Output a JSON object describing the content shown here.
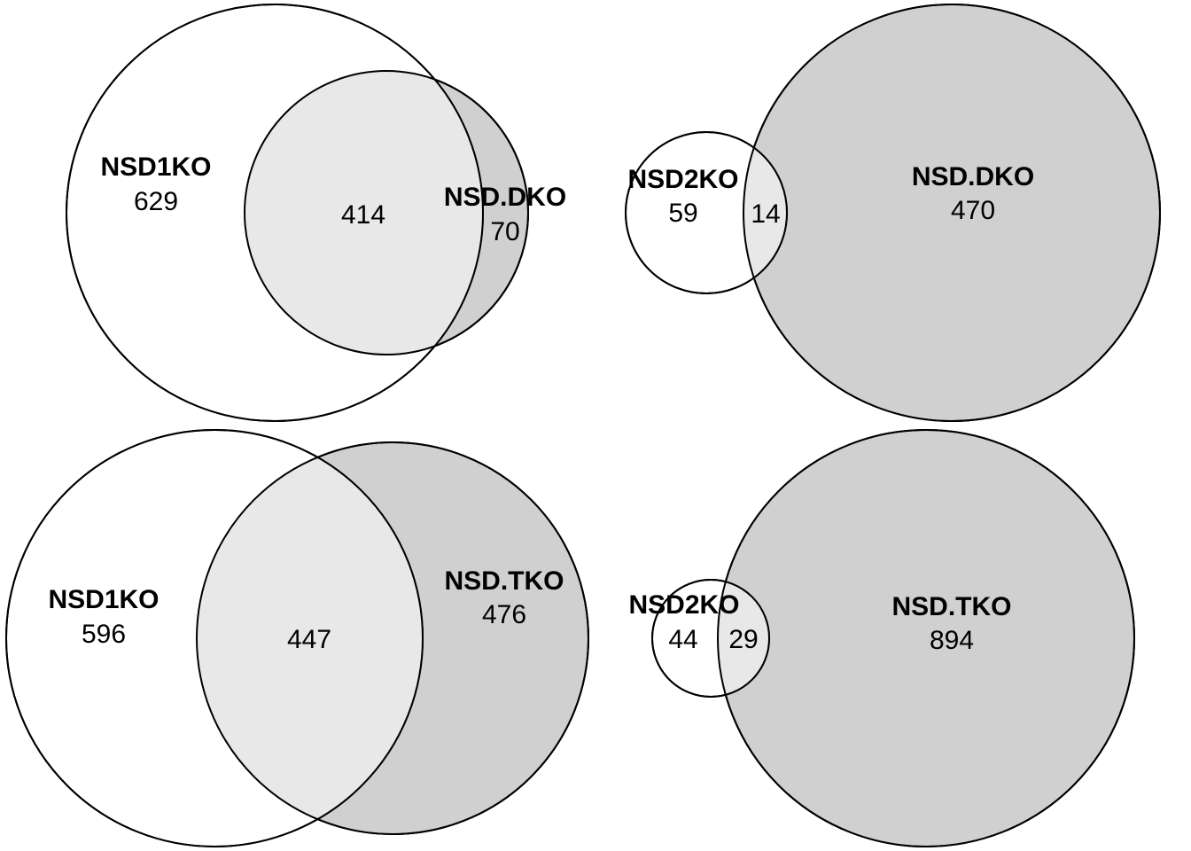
{
  "colors": {
    "first_set_fill": "#ffffff",
    "second_set_fill": "#d0d0d0",
    "overlap_fill": "#e8e8e8",
    "stroke": "#000000"
  },
  "venns": [
    {
      "set_a": {
        "label": "NSD1KO",
        "only": "629"
      },
      "set_b": {
        "label": "NSD.DKO",
        "only": "70"
      },
      "overlap": "414"
    },
    {
      "set_a": {
        "label": "NSD2KO",
        "only": "59"
      },
      "set_b": {
        "label": "NSD.DKO",
        "only": "470"
      },
      "overlap": "14"
    },
    {
      "set_a": {
        "label": "NSD1KO",
        "only": "596"
      },
      "set_b": {
        "label": "NSD.TKO",
        "only": "476"
      },
      "overlap": "447"
    },
    {
      "set_a": {
        "label": "NSD2KO",
        "only": "44"
      },
      "set_b": {
        "label": "NSD.TKO",
        "only": "894"
      },
      "overlap": "29"
    }
  ]
}
